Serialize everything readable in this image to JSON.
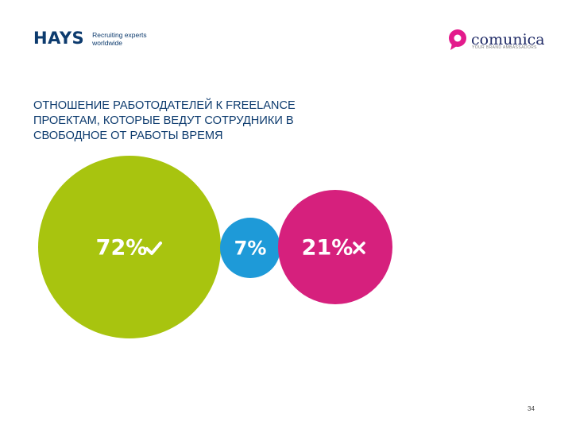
{
  "header": {
    "hays_logo": {
      "wordmark": "HAYS",
      "tagline_line1": "Recruiting experts",
      "tagline_line2": "worldwide",
      "color": "#0d3b6e"
    },
    "comunica_logo": {
      "wordmark": "comunica",
      "tagline": "YOUR BRAND AMBASSADORS",
      "mark_color": "#e31b8c",
      "word_color": "#1f2a66"
    }
  },
  "title_lines": [
    "ОТНОШЕНИЕ РАБОТОДАТЕЛЕЙ К FREELANCE",
    "ПРОЕКТАМ, КОТОРЫЕ ВЕДУТ СОТРУДНИКИ В",
    "СВОБОДНОЕ ОТ РАБОТЫ ВРЕМЯ"
  ],
  "chart_data": {
    "type": "bubble",
    "unit": "%",
    "bubbles": [
      {
        "value": 72,
        "label": "72%",
        "icon": "check-icon",
        "color": "#a8c40f"
      },
      {
        "value": 7,
        "label": "7%",
        "icon": "",
        "color": "#1e9ad8"
      },
      {
        "value": 21,
        "label": "21%",
        "icon": "cross-icon",
        "color": "#d6207d"
      }
    ]
  },
  "footer": {
    "page_number": "34"
  }
}
